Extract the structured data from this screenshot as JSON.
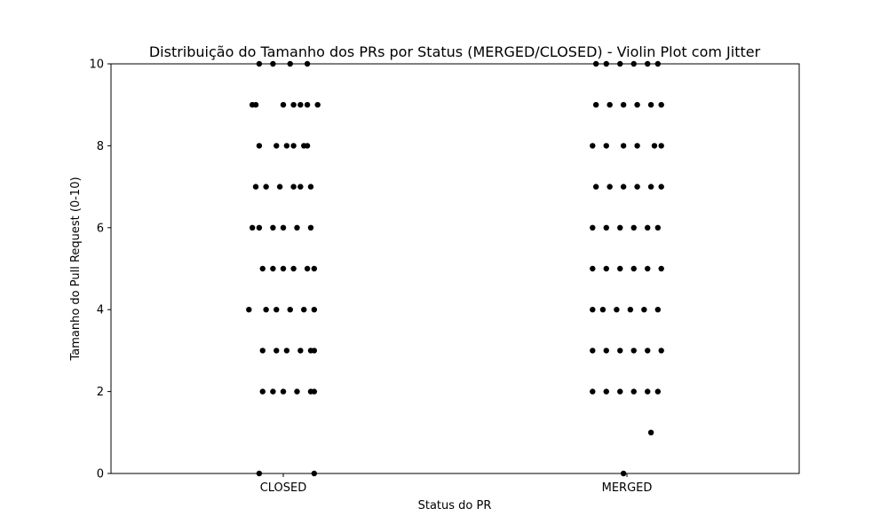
{
  "chart_data": {
    "type": "scatter",
    "title": "Distribuição do Tamanho dos PRs por Status (MERGED/CLOSED) - Violin Plot com Jitter",
    "xlabel": "Status do PR",
    "ylabel": "Tamanho do Pull Request (0-10)",
    "categories": [
      "CLOSED",
      "MERGED"
    ],
    "ylim": [
      0,
      10
    ],
    "yticks": [
      0,
      2,
      4,
      6,
      8,
      10
    ],
    "grid": false,
    "point_color": "#000000",
    "series": [
      {
        "category": "CLOSED",
        "points": [
          {
            "x": -0.07,
            "y": 0
          },
          {
            "x": 0.09,
            "y": 0
          },
          {
            "x": -0.06,
            "y": 2
          },
          {
            "x": -0.03,
            "y": 2
          },
          {
            "x": 0.0,
            "y": 2
          },
          {
            "x": 0.04,
            "y": 2
          },
          {
            "x": 0.08,
            "y": 2
          },
          {
            "x": 0.09,
            "y": 2
          },
          {
            "x": -0.06,
            "y": 3
          },
          {
            "x": -0.02,
            "y": 3
          },
          {
            "x": 0.01,
            "y": 3
          },
          {
            "x": 0.05,
            "y": 3
          },
          {
            "x": 0.08,
            "y": 3
          },
          {
            "x": 0.09,
            "y": 3
          },
          {
            "x": -0.1,
            "y": 4
          },
          {
            "x": -0.05,
            "y": 4
          },
          {
            "x": -0.02,
            "y": 4
          },
          {
            "x": 0.02,
            "y": 4
          },
          {
            "x": 0.06,
            "y": 4
          },
          {
            "x": 0.09,
            "y": 4
          },
          {
            "x": -0.06,
            "y": 5
          },
          {
            "x": -0.03,
            "y": 5
          },
          {
            "x": 0.0,
            "y": 5
          },
          {
            "x": 0.03,
            "y": 5
          },
          {
            "x": 0.07,
            "y": 5
          },
          {
            "x": 0.09,
            "y": 5
          },
          {
            "x": -0.09,
            "y": 6
          },
          {
            "x": -0.07,
            "y": 6
          },
          {
            "x": -0.03,
            "y": 6
          },
          {
            "x": 0.0,
            "y": 6
          },
          {
            "x": 0.04,
            "y": 6
          },
          {
            "x": 0.08,
            "y": 6
          },
          {
            "x": -0.08,
            "y": 7
          },
          {
            "x": -0.05,
            "y": 7
          },
          {
            "x": -0.01,
            "y": 7
          },
          {
            "x": 0.03,
            "y": 7
          },
          {
            "x": 0.05,
            "y": 7
          },
          {
            "x": 0.08,
            "y": 7
          },
          {
            "x": -0.07,
            "y": 8
          },
          {
            "x": -0.02,
            "y": 8
          },
          {
            "x": 0.01,
            "y": 8
          },
          {
            "x": 0.03,
            "y": 8
          },
          {
            "x": 0.06,
            "y": 8
          },
          {
            "x": 0.07,
            "y": 8
          },
          {
            "x": -0.09,
            "y": 9
          },
          {
            "x": -0.08,
            "y": 9
          },
          {
            "x": 0.0,
            "y": 9
          },
          {
            "x": 0.03,
            "y": 9
          },
          {
            "x": 0.05,
            "y": 9
          },
          {
            "x": 0.07,
            "y": 9
          },
          {
            "x": 0.1,
            "y": 9
          },
          {
            "x": -0.07,
            "y": 10
          },
          {
            "x": -0.03,
            "y": 10
          },
          {
            "x": 0.02,
            "y": 10
          },
          {
            "x": 0.07,
            "y": 10
          }
        ]
      },
      {
        "category": "MERGED",
        "points": [
          {
            "x": -0.01,
            "y": 0
          },
          {
            "x": 0.07,
            "y": 1
          },
          {
            "x": -0.1,
            "y": 2
          },
          {
            "x": -0.06,
            "y": 2
          },
          {
            "x": -0.02,
            "y": 2
          },
          {
            "x": 0.02,
            "y": 2
          },
          {
            "x": 0.06,
            "y": 2
          },
          {
            "x": 0.09,
            "y": 2
          },
          {
            "x": -0.1,
            "y": 3
          },
          {
            "x": -0.06,
            "y": 3
          },
          {
            "x": -0.02,
            "y": 3
          },
          {
            "x": 0.02,
            "y": 3
          },
          {
            "x": 0.06,
            "y": 3
          },
          {
            "x": 0.1,
            "y": 3
          },
          {
            "x": -0.1,
            "y": 4
          },
          {
            "x": -0.07,
            "y": 4
          },
          {
            "x": -0.03,
            "y": 4
          },
          {
            "x": 0.01,
            "y": 4
          },
          {
            "x": 0.05,
            "y": 4
          },
          {
            "x": 0.09,
            "y": 4
          },
          {
            "x": -0.1,
            "y": 5
          },
          {
            "x": -0.06,
            "y": 5
          },
          {
            "x": -0.02,
            "y": 5
          },
          {
            "x": 0.02,
            "y": 5
          },
          {
            "x": 0.06,
            "y": 5
          },
          {
            "x": 0.1,
            "y": 5
          },
          {
            "x": -0.1,
            "y": 6
          },
          {
            "x": -0.06,
            "y": 6
          },
          {
            "x": -0.02,
            "y": 6
          },
          {
            "x": 0.02,
            "y": 6
          },
          {
            "x": 0.06,
            "y": 6
          },
          {
            "x": 0.09,
            "y": 6
          },
          {
            "x": -0.09,
            "y": 7
          },
          {
            "x": -0.05,
            "y": 7
          },
          {
            "x": -0.01,
            "y": 7
          },
          {
            "x": 0.03,
            "y": 7
          },
          {
            "x": 0.07,
            "y": 7
          },
          {
            "x": 0.1,
            "y": 7
          },
          {
            "x": -0.1,
            "y": 8
          },
          {
            "x": -0.06,
            "y": 8
          },
          {
            "x": -0.01,
            "y": 8
          },
          {
            "x": 0.03,
            "y": 8
          },
          {
            "x": 0.08,
            "y": 8
          },
          {
            "x": 0.1,
            "y": 8
          },
          {
            "x": -0.09,
            "y": 9
          },
          {
            "x": -0.05,
            "y": 9
          },
          {
            "x": -0.01,
            "y": 9
          },
          {
            "x": 0.03,
            "y": 9
          },
          {
            "x": 0.07,
            "y": 9
          },
          {
            "x": 0.1,
            "y": 9
          },
          {
            "x": -0.09,
            "y": 10
          },
          {
            "x": -0.06,
            "y": 10
          },
          {
            "x": -0.02,
            "y": 10
          },
          {
            "x": 0.02,
            "y": 10
          },
          {
            "x": 0.06,
            "y": 10
          },
          {
            "x": 0.09,
            "y": 10
          }
        ]
      }
    ]
  }
}
